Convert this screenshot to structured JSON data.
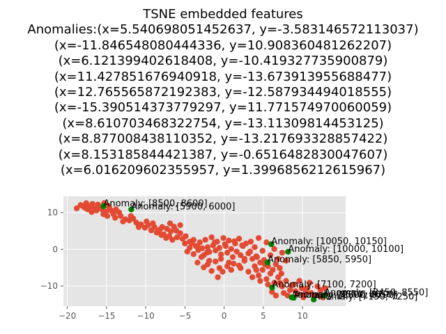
{
  "chart_data": {
    "type": "scatter",
    "title_lines": [
      "TSNE embedded features",
      "Anomalies:(x=5.540698051452637, y=-3.583146572113037)",
      "(x=-11.846548080444336, y=10.908360481262207)",
      "(x=6.121399402618408, y=-10.419327735900879)",
      "(x=11.427851676940918, y=-13.673913955688477)",
      "(x=12.765565872192383, y=-12.587934494018555)",
      "(x=-15.390514373779297, y=11.771574970060059)",
      "(x=8.610703468322754, y=-13.11309814453125)",
      "(x=8.877008438110352, y=-13.217693328857422)",
      "(x=8.153185844421387, y=-0.6516482830047607)",
      "(x=6.016209602355957, y=1.3996856212615967)"
    ],
    "xlim": [
      -20.5,
      15.5
    ],
    "ylim": [
      -15.5,
      14.5
    ],
    "xticks": [
      -20,
      -15,
      -10,
      -5,
      0,
      5,
      10
    ],
    "yticks": [
      10,
      0,
      -10
    ],
    "grid": true,
    "background": "#e5e5e5",
    "normal_color": "#e24a33",
    "anomaly_color": "#008000",
    "normal_points": [
      [
        -18.8,
        11.2
      ],
      [
        -18.3,
        12.1
      ],
      [
        -17.9,
        11.6
      ],
      [
        -17.6,
        12.6
      ],
      [
        -17.4,
        10.9
      ],
      [
        -17.1,
        11.8
      ],
      [
        -16.8,
        12.4
      ],
      [
        -16.6,
        11.1
      ],
      [
        -16.3,
        10.6
      ],
      [
        -16.1,
        12.2
      ],
      [
        -15.9,
        11.4
      ],
      [
        -15.6,
        10.9
      ],
      [
        -15.3,
        12.6
      ],
      [
        -15.1,
        10.3
      ],
      [
        -14.8,
        11.9
      ],
      [
        -14.6,
        11.1
      ],
      [
        -14.3,
        10.4
      ],
      [
        -14.1,
        9.6
      ],
      [
        -13.8,
        10.9
      ],
      [
        -13.4,
        10.1
      ],
      [
        -16.9,
        10.2
      ],
      [
        -17.7,
        11.3
      ],
      [
        -16.1,
        11.7
      ],
      [
        -15.4,
        9.6
      ],
      [
        -14.9,
        9.1
      ],
      [
        -14.5,
        10.7
      ],
      [
        -13.2,
        9.1
      ],
      [
        -12.6,
        8.2
      ],
      [
        -12.1,
        7.9
      ],
      [
        -11.6,
        8.4
      ],
      [
        -11.2,
        7.3
      ],
      [
        -10.6,
        6.8
      ],
      [
        -10.1,
        5.9
      ],
      [
        -9.7,
        6.6
      ],
      [
        -9.3,
        5.2
      ],
      [
        -8.9,
        6.1
      ],
      [
        -8.6,
        4.6
      ],
      [
        -8.2,
        5.4
      ],
      [
        -7.7,
        4.1
      ],
      [
        -7.3,
        5.6
      ],
      [
        -7.0,
        3.6
      ],
      [
        -6.8,
        4.9
      ],
      [
        -6.4,
        6.2
      ],
      [
        -6.0,
        3.3
      ],
      [
        -5.6,
        4.4
      ],
      [
        -5.3,
        2.9
      ],
      [
        -9.1,
        7.1
      ],
      [
        -8.0,
        3.9
      ],
      [
        -6.6,
        2.6
      ],
      [
        -5.0,
        1.6
      ],
      [
        -4.7,
        -0.6
      ],
      [
        -4.4,
        0.4
      ],
      [
        -4.1,
        1.6
      ],
      [
        -3.9,
        -1.3
      ],
      [
        -3.6,
        0.9
      ],
      [
        -3.3,
        -0.2
      ],
      [
        -3.1,
        1.9
      ],
      [
        -2.8,
        0.3
      ],
      [
        -2.6,
        -1.6
      ],
      [
        -2.4,
        2.6
      ],
      [
        -2.1,
        0.6
      ],
      [
        -1.9,
        -0.7
      ],
      [
        -1.6,
        3.3
      ],
      [
        -1.4,
        1.1
      ],
      [
        -1.1,
        -0.3
      ],
      [
        -0.9,
        2.1
      ],
      [
        -0.6,
        0.4
      ],
      [
        -0.4,
        -1.4
      ],
      [
        -0.1,
        3.1
      ],
      [
        0.1,
        1.4
      ],
      [
        0.4,
        -0.9
      ],
      [
        0.6,
        2.4
      ],
      [
        0.9,
        0.1
      ],
      [
        1.1,
        -2.1
      ],
      [
        1.4,
        1.6
      ],
      [
        1.6,
        -0.6
      ],
      [
        1.9,
        2.9
      ],
      [
        2.1,
        -1.6
      ],
      [
        2.4,
        0.9
      ],
      [
        2.6,
        -3.1
      ],
      [
        -3.4,
        -3.6
      ],
      [
        -2.1,
        -4.1
      ],
      [
        -1.1,
        -3.3
      ],
      [
        -0.6,
        -5.1
      ],
      [
        0.4,
        -4.6
      ],
      [
        1.2,
        -3.9
      ],
      [
        -0.2,
        -6.1
      ],
      [
        0.9,
        -5.6
      ],
      [
        -0.8,
        -7.6
      ],
      [
        -1.6,
        -5.9
      ],
      [
        -2.6,
        -4.9
      ],
      [
        2.1,
        -5.1
      ],
      [
        3.1,
        -6.1
      ],
      [
        3.9,
        -4.6
      ],
      [
        4.4,
        -7.1
      ],
      [
        4.9,
        -5.6
      ],
      [
        5.4,
        -8.1
      ],
      [
        5.9,
        -6.6
      ],
      [
        6.4,
        -9.1
      ],
      [
        6.9,
        -7.6
      ],
      [
        7.4,
        -10.1
      ],
      [
        7.9,
        -8.6
      ],
      [
        8.4,
        -11.1
      ],
      [
        8.9,
        -9.6
      ],
      [
        9.4,
        -12.1
      ],
      [
        9.9,
        -10.6
      ],
      [
        10.4,
        -11.6
      ],
      [
        10.9,
        -9.1
      ],
      [
        11.4,
        -12.6
      ],
      [
        11.9,
        -10.1
      ],
      [
        12.3,
        -11.1
      ],
      [
        12.6,
        -13.1
      ],
      [
        12.9,
        -10.6
      ],
      [
        6.1,
        -11.6
      ],
      [
        6.6,
        -12.6
      ],
      [
        7.6,
        -11.9
      ],
      [
        8.1,
        -12.6
      ],
      [
        9.1,
        -11.4
      ],
      [
        10.1,
        -12.6
      ],
      [
        9.6,
        -8.6
      ],
      [
        3.4,
        2.1
      ],
      [
        3.9,
        0.6
      ],
      [
        4.4,
        3.1
      ],
      [
        4.9,
        -0.4
      ],
      [
        5.4,
        1.9
      ],
      [
        5.9,
        -1.6
      ],
      [
        6.4,
        0.1
      ],
      [
        6.9,
        -2.6
      ],
      [
        7.4,
        -0.9
      ],
      [
        7.9,
        -3.1
      ],
      [
        3.1,
        -1.1
      ],
      [
        2.8,
        1.6
      ],
      [
        3.6,
        -2.6
      ],
      [
        4.1,
        -1.9
      ],
      [
        4.6,
        -3.6
      ],
      [
        5.1,
        -2.9
      ],
      [
        6.6,
        -4.1
      ],
      [
        7.1,
        -5.1
      ],
      [
        5.6,
        -4.6
      ],
      [
        4.1,
        -5.6
      ],
      [
        -5.6,
        6.6
      ],
      [
        -6.9,
        7.1
      ],
      [
        -7.9,
        6.1
      ],
      [
        -4.9,
        3.6
      ],
      [
        -3.9,
        2.6
      ],
      [
        -2.9,
        -2.1
      ],
      [
        -1.9,
        -3.1
      ],
      [
        -0.4,
        -2.6
      ],
      [
        0.6,
        -3.6
      ],
      [
        1.9,
        -4.4
      ],
      [
        2.6,
        -2.6
      ],
      [
        3.6,
        -7.6
      ],
      [
        4.6,
        -8.6
      ],
      [
        5.6,
        -9.6
      ],
      [
        7.1,
        -9.1
      ],
      [
        8.6,
        -9.9
      ],
      [
        10.6,
        -10.6
      ],
      [
        11.1,
        -11.9
      ],
      [
        12.1,
        -12.6
      ],
      [
        10.1,
        -13.1
      ],
      [
        -13.9,
        8.6
      ],
      [
        -12.9,
        7.6
      ],
      [
        -11.9,
        9.1
      ],
      [
        -10.9,
        6.1
      ],
      [
        -9.9,
        7.6
      ],
      [
        -8.4,
        5.1
      ],
      [
        -7.4,
        3.1
      ],
      [
        -6.1,
        5.1
      ],
      [
        -4.4,
        2.1
      ],
      [
        -3.4,
        0.6
      ],
      [
        -2.2,
        -0.9
      ],
      [
        -1.2,
        1.9
      ],
      [
        0.2,
        0.9
      ],
      [
        1.3,
        2.2
      ],
      [
        2.3,
        1.1
      ],
      [
        3.3,
        -0.6
      ],
      [
        4.2,
        -2.1
      ],
      [
        5.2,
        -4.1
      ],
      [
        6.2,
        -5.6
      ],
      [
        7.3,
        -6.6
      ]
    ],
    "anomalies": [
      {
        "x": 5.540698051452637,
        "y": -3.583146572113037,
        "label": "Anomaly: [5850, 5950]"
      },
      {
        "x": -11.846548080444336,
        "y": 10.908360481262207,
        "label": "Anomaly: [5900, 6000]"
      },
      {
        "x": 6.121399402618408,
        "y": -10.419327735900879,
        "label": "Anomaly: [7100, 7200]"
      },
      {
        "x": 11.427851676940918,
        "y": -13.673913955688477,
        "label": "Anomaly: [7150, 7250]"
      },
      {
        "x": 12.765565872192383,
        "y": -12.587934494018555,
        "label": "Anomaly: [8450, 8550]"
      },
      {
        "x": -15.390514373779297,
        "y": 11.771574970060058,
        "label": "Anomaly: [8500, 8600]"
      },
      {
        "x": 8.610703468322754,
        "y": -13.11309814453125,
        "label": "Anomaly: [8550, 8650]"
      },
      {
        "x": 8.877008438110352,
        "y": -13.217693328857422,
        "label": "Anomaly: [8600, 8700]"
      },
      {
        "x": 8.153185844421387,
        "y": -0.6516482830047607,
        "label": "Anomaly: [10000, 10100]"
      },
      {
        "x": 6.016209602355957,
        "y": 1.3996856212615967,
        "label": "Anomaly: [10050, 10150]"
      }
    ]
  }
}
